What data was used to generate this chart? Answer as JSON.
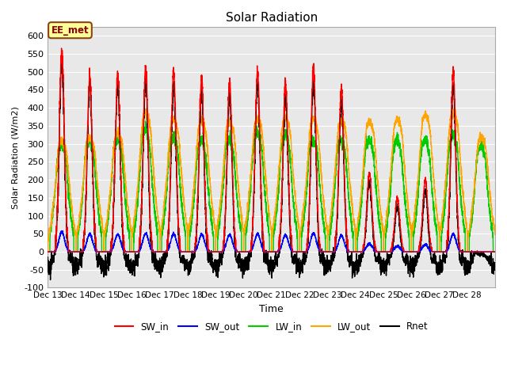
{
  "title": "Solar Radiation",
  "ylabel": "Solar Radiation (W/m2)",
  "xlabel": "Time",
  "ylim": [
    -100,
    625
  ],
  "yticks": [
    -100,
    -50,
    0,
    50,
    100,
    150,
    200,
    250,
    300,
    350,
    400,
    450,
    500,
    550,
    600
  ],
  "annotation_text": "EE_met",
  "annotation_box_color": "#FFFF99",
  "annotation_box_edge": "#8B4513",
  "annotation_text_color": "#8B0000",
  "bg_color": "#E8E8E8",
  "legend_entries": [
    "SW_in",
    "SW_out",
    "LW_in",
    "LW_out",
    "Rnet"
  ],
  "line_colors": [
    "#FF0000",
    "#0000FF",
    "#00CC00",
    "#FFA500",
    "#000000"
  ],
  "num_days": 16,
  "points_per_day": 288,
  "xtick_labels": [
    "Dec 13",
    "Dec 14",
    "Dec 15",
    "Dec 16",
    "Dec 17",
    "Dec 18",
    "Dec 19",
    "Dec 20",
    "Dec 21",
    "Dec 22",
    "Dec 23",
    "Dec 24",
    "Dec 25",
    "Dec 26",
    "Dec 27",
    "Dec 28"
  ]
}
